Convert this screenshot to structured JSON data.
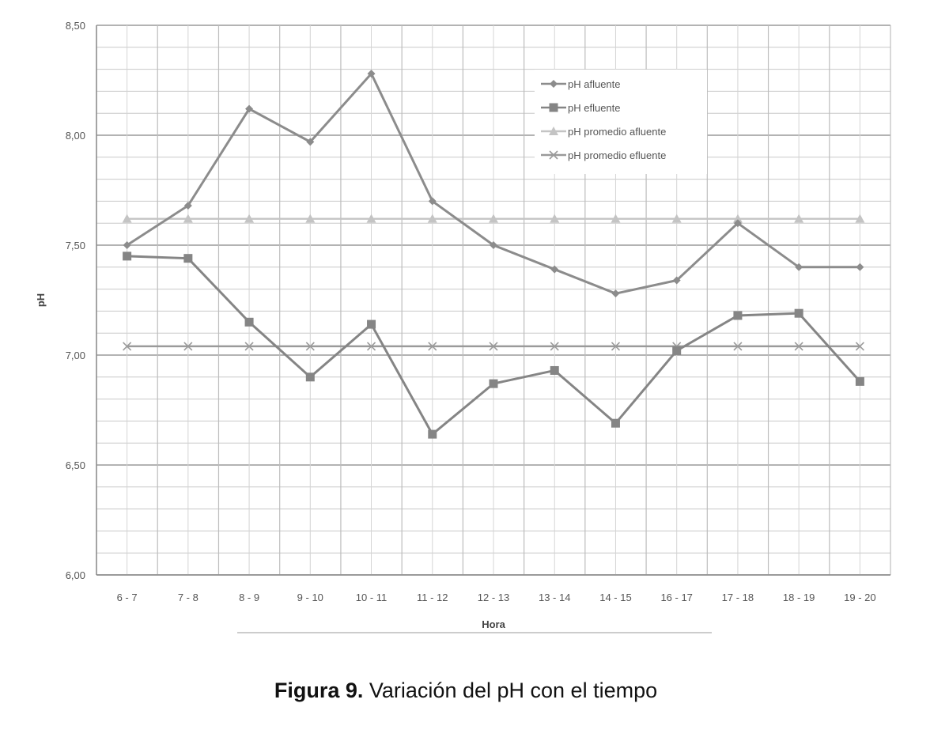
{
  "caption": {
    "label": "Figura 9.",
    "text": " Variación del pH con el tiempo"
  },
  "chart_data": {
    "type": "line",
    "xlabel": "Hora",
    "ylabel": "pH",
    "ylim": [
      6.0,
      8.5
    ],
    "ytick_step": 0.1,
    "ytick_label_step": 0.5,
    "yticks": [
      "6,00",
      "6,50",
      "7,00",
      "7,50",
      "8,00",
      "8,50"
    ],
    "grid": true,
    "legend_position": "top-right",
    "categories": [
      "6 - 7",
      "7 - 8",
      "8 - 9",
      "9 - 10",
      "10 - 11",
      "11 - 12",
      "12 - 13",
      "13 - 14",
      "14 - 15",
      "16 - 17",
      "17 - 18",
      "18 - 19",
      "19 - 20"
    ],
    "series": [
      {
        "name": "pH afluente",
        "marker": "diamond",
        "color": "#8c8c8c",
        "values": [
          7.5,
          7.68,
          8.12,
          7.97,
          8.28,
          7.7,
          7.5,
          7.39,
          7.28,
          7.34,
          7.6,
          7.4,
          7.4
        ]
      },
      {
        "name": "pH efluente",
        "marker": "square",
        "color": "#858585",
        "values": [
          7.45,
          7.44,
          7.15,
          6.9,
          7.14,
          6.64,
          6.87,
          6.93,
          6.69,
          7.02,
          7.18,
          7.19,
          6.88
        ]
      },
      {
        "name": "pH promedio afluente",
        "marker": "triangle",
        "color": "#c4c4c4",
        "values": [
          7.62,
          7.62,
          7.62,
          7.62,
          7.62,
          7.62,
          7.62,
          7.62,
          7.62,
          7.62,
          7.62,
          7.62,
          7.62
        ]
      },
      {
        "name": "pH promedio efluente",
        "marker": "x",
        "color": "#9a9a9a",
        "values": [
          7.04,
          7.04,
          7.04,
          7.04,
          7.04,
          7.04,
          7.04,
          7.04,
          7.04,
          7.04,
          7.04,
          7.04,
          7.04
        ]
      }
    ]
  }
}
